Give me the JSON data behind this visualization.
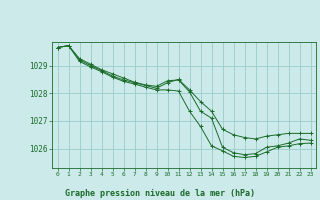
{
  "title": "Graphe pression niveau de la mer (hPa)",
  "bg_color": "#cceaea",
  "grid_color": "#99cccc",
  "line_color": "#1a6b2a",
  "ylim": [
    1025.3,
    1029.85
  ],
  "xlim": [
    -0.5,
    23.5
  ],
  "yticks": [
    1026,
    1027,
    1028,
    1029
  ],
  "xticks": [
    0,
    1,
    2,
    3,
    4,
    5,
    6,
    7,
    8,
    9,
    10,
    11,
    12,
    13,
    14,
    15,
    16,
    17,
    18,
    19,
    20,
    21,
    22,
    23
  ],
  "series": [
    [
      1029.65,
      1029.72,
      1029.25,
      1029.05,
      1028.85,
      1028.7,
      1028.55,
      1028.4,
      1028.3,
      1028.25,
      1028.45,
      1028.48,
      1028.05,
      1027.35,
      1027.1,
      1026.05,
      1025.85,
      1025.78,
      1025.82,
      1026.05,
      1026.1,
      1026.2,
      1026.35,
      1026.3
    ],
    [
      1029.65,
      1029.72,
      1029.2,
      1029.0,
      1028.82,
      1028.62,
      1028.48,
      1028.38,
      1028.28,
      1028.18,
      1028.38,
      1028.5,
      1028.12,
      1027.7,
      1027.35,
      1026.7,
      1026.5,
      1026.4,
      1026.35,
      1026.45,
      1026.5,
      1026.55,
      1026.55,
      1026.55
    ],
    [
      1029.65,
      1029.72,
      1029.15,
      1028.95,
      1028.78,
      1028.58,
      1028.43,
      1028.33,
      1028.22,
      1028.12,
      1028.12,
      1028.08,
      1027.35,
      1026.8,
      1026.1,
      1025.92,
      1025.72,
      1025.68,
      1025.72,
      1025.88,
      1026.05,
      1026.1,
      1026.18,
      1026.2
    ]
  ],
  "figsize": [
    3.2,
    2.0
  ],
  "dpi": 100
}
